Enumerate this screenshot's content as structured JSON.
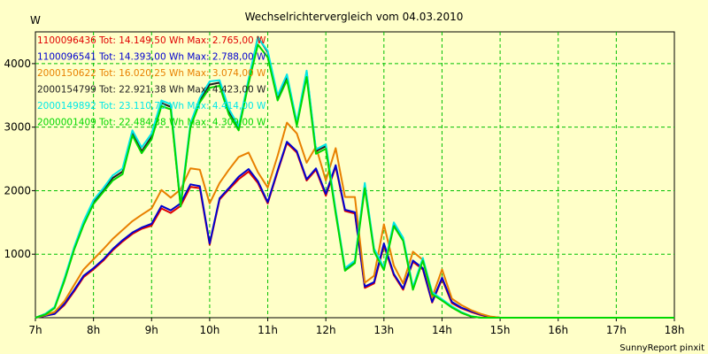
{
  "chart_data": {
    "type": "line",
    "title": "Wechselrichtervergleich vom 04.03.2010",
    "ylabel": "W",
    "xlabel": "",
    "credit": "SunnyReport pinxit",
    "grid": true,
    "ylim": [
      0,
      4500
    ],
    "xlim": [
      7.0,
      18.0
    ],
    "x_ticks": [
      7,
      8,
      9,
      10,
      11,
      12,
      13,
      14,
      15,
      16,
      17,
      18
    ],
    "x_tick_labels": [
      "7h",
      "8h",
      "9h",
      "10h",
      "11h",
      "12h",
      "13h",
      "14h",
      "15h",
      "16h",
      "17h",
      "18h"
    ],
    "y_ticks": [
      1000,
      2000,
      3000,
      4000
    ],
    "y_tick_labels": [
      "1000",
      "2000",
      "3000",
      "4000"
    ],
    "x": [
      7.0,
      7.17,
      7.33,
      7.5,
      7.67,
      7.83,
      8.0,
      8.17,
      8.33,
      8.5,
      8.67,
      8.83,
      9.0,
      9.17,
      9.33,
      9.5,
      9.67,
      9.83,
      10.0,
      10.17,
      10.33,
      10.5,
      10.67,
      10.83,
      11.0,
      11.17,
      11.33,
      11.5,
      11.67,
      11.83,
      12.0,
      12.17,
      12.33,
      12.5,
      12.67,
      12.83,
      13.0,
      13.17,
      13.33,
      13.5,
      13.67,
      13.83,
      14.0,
      14.17,
      14.33,
      14.5,
      14.67,
      14.83,
      15.0,
      15.17,
      15.33,
      15.5,
      15.67,
      15.83,
      16.0,
      16.17,
      16.33,
      16.5,
      16.67,
      16.83,
      17.0,
      17.17,
      17.33,
      17.5,
      17.67,
      17.83,
      18.0
    ],
    "series": [
      {
        "name": "1100096436",
        "legend": "1100096436 Tot: 14.149,50 Wh Max: 2.765,00 W",
        "color": "#e00000",
        "values": [
          0,
          30,
          60,
          200,
          420,
          640,
          760,
          900,
          1060,
          1200,
          1320,
          1400,
          1450,
          1720,
          1650,
          1760,
          2060,
          2040,
          1150,
          1860,
          2020,
          2180,
          2300,
          2120,
          1800,
          2300,
          2750,
          2600,
          2160,
          2330,
          1920,
          2380,
          1680,
          1640,
          470,
          540,
          1140,
          670,
          440,
          880,
          760,
          240,
          610,
          230,
          150,
          90,
          40,
          10,
          0,
          0,
          0,
          0,
          0,
          0,
          0,
          0,
          0,
          0,
          0,
          0,
          0,
          0,
          0,
          0,
          0,
          0,
          0
        ]
      },
      {
        "name": "1100096541",
        "legend": "1100096541 Tot: 14.393,00 Wh Max: 2.788,00 W",
        "color": "#0000d0",
        "values": [
          0,
          30,
          60,
          220,
          440,
          660,
          780,
          920,
          1080,
          1220,
          1340,
          1420,
          1480,
          1760,
          1690,
          1800,
          2100,
          2070,
          1170,
          1880,
          2040,
          2220,
          2340,
          2150,
          1820,
          2320,
          2770,
          2620,
          2180,
          2350,
          1950,
          2400,
          1700,
          1660,
          490,
          560,
          1170,
          690,
          460,
          900,
          780,
          250,
          630,
          250,
          160,
          100,
          50,
          15,
          0,
          0,
          0,
          0,
          0,
          0,
          0,
          0,
          0,
          0,
          0,
          0,
          0,
          0,
          0,
          0,
          0,
          0,
          0
        ]
      },
      {
        "name": "2000150622",
        "legend": "2000150622 Tot: 16.020,25 Wh Max: 3.074,00 W",
        "color": "#e88000",
        "values": [
          0,
          40,
          90,
          260,
          520,
          760,
          920,
          1080,
          1240,
          1380,
          1520,
          1620,
          1720,
          2010,
          1890,
          2020,
          2350,
          2330,
          1800,
          2120,
          2330,
          2530,
          2600,
          2290,
          2050,
          2550,
          3070,
          2900,
          2440,
          2690,
          2160,
          2670,
          1900,
          1900,
          550,
          660,
          1470,
          820,
          540,
          1040,
          910,
          320,
          760,
          300,
          200,
          120,
          60,
          20,
          0,
          0,
          0,
          0,
          0,
          0,
          0,
          0,
          0,
          0,
          0,
          0,
          0,
          0,
          0,
          0,
          0,
          0,
          0
        ]
      },
      {
        "name": "2000154799",
        "legend": "2000154799 Tot: 22.921,38 Wh Max: 4.423,00 W",
        "color": "#202020",
        "values": [
          0,
          60,
          160,
          600,
          1100,
          1500,
          1820,
          2000,
          2200,
          2300,
          2900,
          2620,
          2850,
          3380,
          3320,
          1760,
          3030,
          3430,
          3670,
          3700,
          3250,
          2990,
          3730,
          4420,
          4180,
          3460,
          3800,
          3050,
          3870,
          2620,
          2700,
          1670,
          760,
          880,
          2090,
          1060,
          770,
          1470,
          1240,
          460,
          920,
          380,
          280,
          170,
          80,
          20,
          0,
          0,
          0,
          0,
          0,
          0,
          0,
          0,
          0,
          0,
          0,
          0,
          0,
          0,
          0,
          0,
          0,
          0,
          0,
          0,
          0
        ]
      },
      {
        "name": "2000149892",
        "legend": "2000149892 Tot: 23.110,75 Wh Max: 4.414,00 W",
        "color": "#00e8e8",
        "values": [
          0,
          60,
          170,
          620,
          1120,
          1520,
          1850,
          2040,
          2240,
          2350,
          2950,
          2680,
          2900,
          3420,
          3360,
          1800,
          3060,
          3460,
          3720,
          3740,
          3290,
          3010,
          3760,
          4410,
          4200,
          3500,
          3830,
          3080,
          3890,
          2650,
          2730,
          1700,
          780,
          900,
          2120,
          1090,
          790,
          1500,
          1260,
          480,
          940,
          400,
          290,
          180,
          90,
          25,
          0,
          0,
          0,
          0,
          0,
          0,
          0,
          0,
          0,
          0,
          0,
          0,
          0,
          0,
          0,
          0,
          0,
          0,
          0,
          0,
          0
        ]
      },
      {
        "name": "2000001409",
        "legend": "2000001409 Tot: 22.484,38 Wh Max: 4.309,00 W",
        "color": "#00d800",
        "values": [
          0,
          50,
          150,
          580,
          1080,
          1460,
          1790,
          1980,
          2160,
          2260,
          2870,
          2590,
          2810,
          3330,
          3280,
          1750,
          3000,
          3390,
          3620,
          3650,
          3200,
          2950,
          3690,
          4300,
          4100,
          3420,
          3740,
          3020,
          3790,
          2580,
          2660,
          1640,
          740,
          860,
          2040,
          1040,
          750,
          1440,
          1210,
          440,
          900,
          370,
          270,
          160,
          80,
          20,
          0,
          0,
          0,
          0,
          0,
          0,
          0,
          0,
          0,
          0,
          0,
          0,
          0,
          0,
          0,
          0,
          0,
          0,
          0,
          0,
          0
        ]
      }
    ]
  }
}
